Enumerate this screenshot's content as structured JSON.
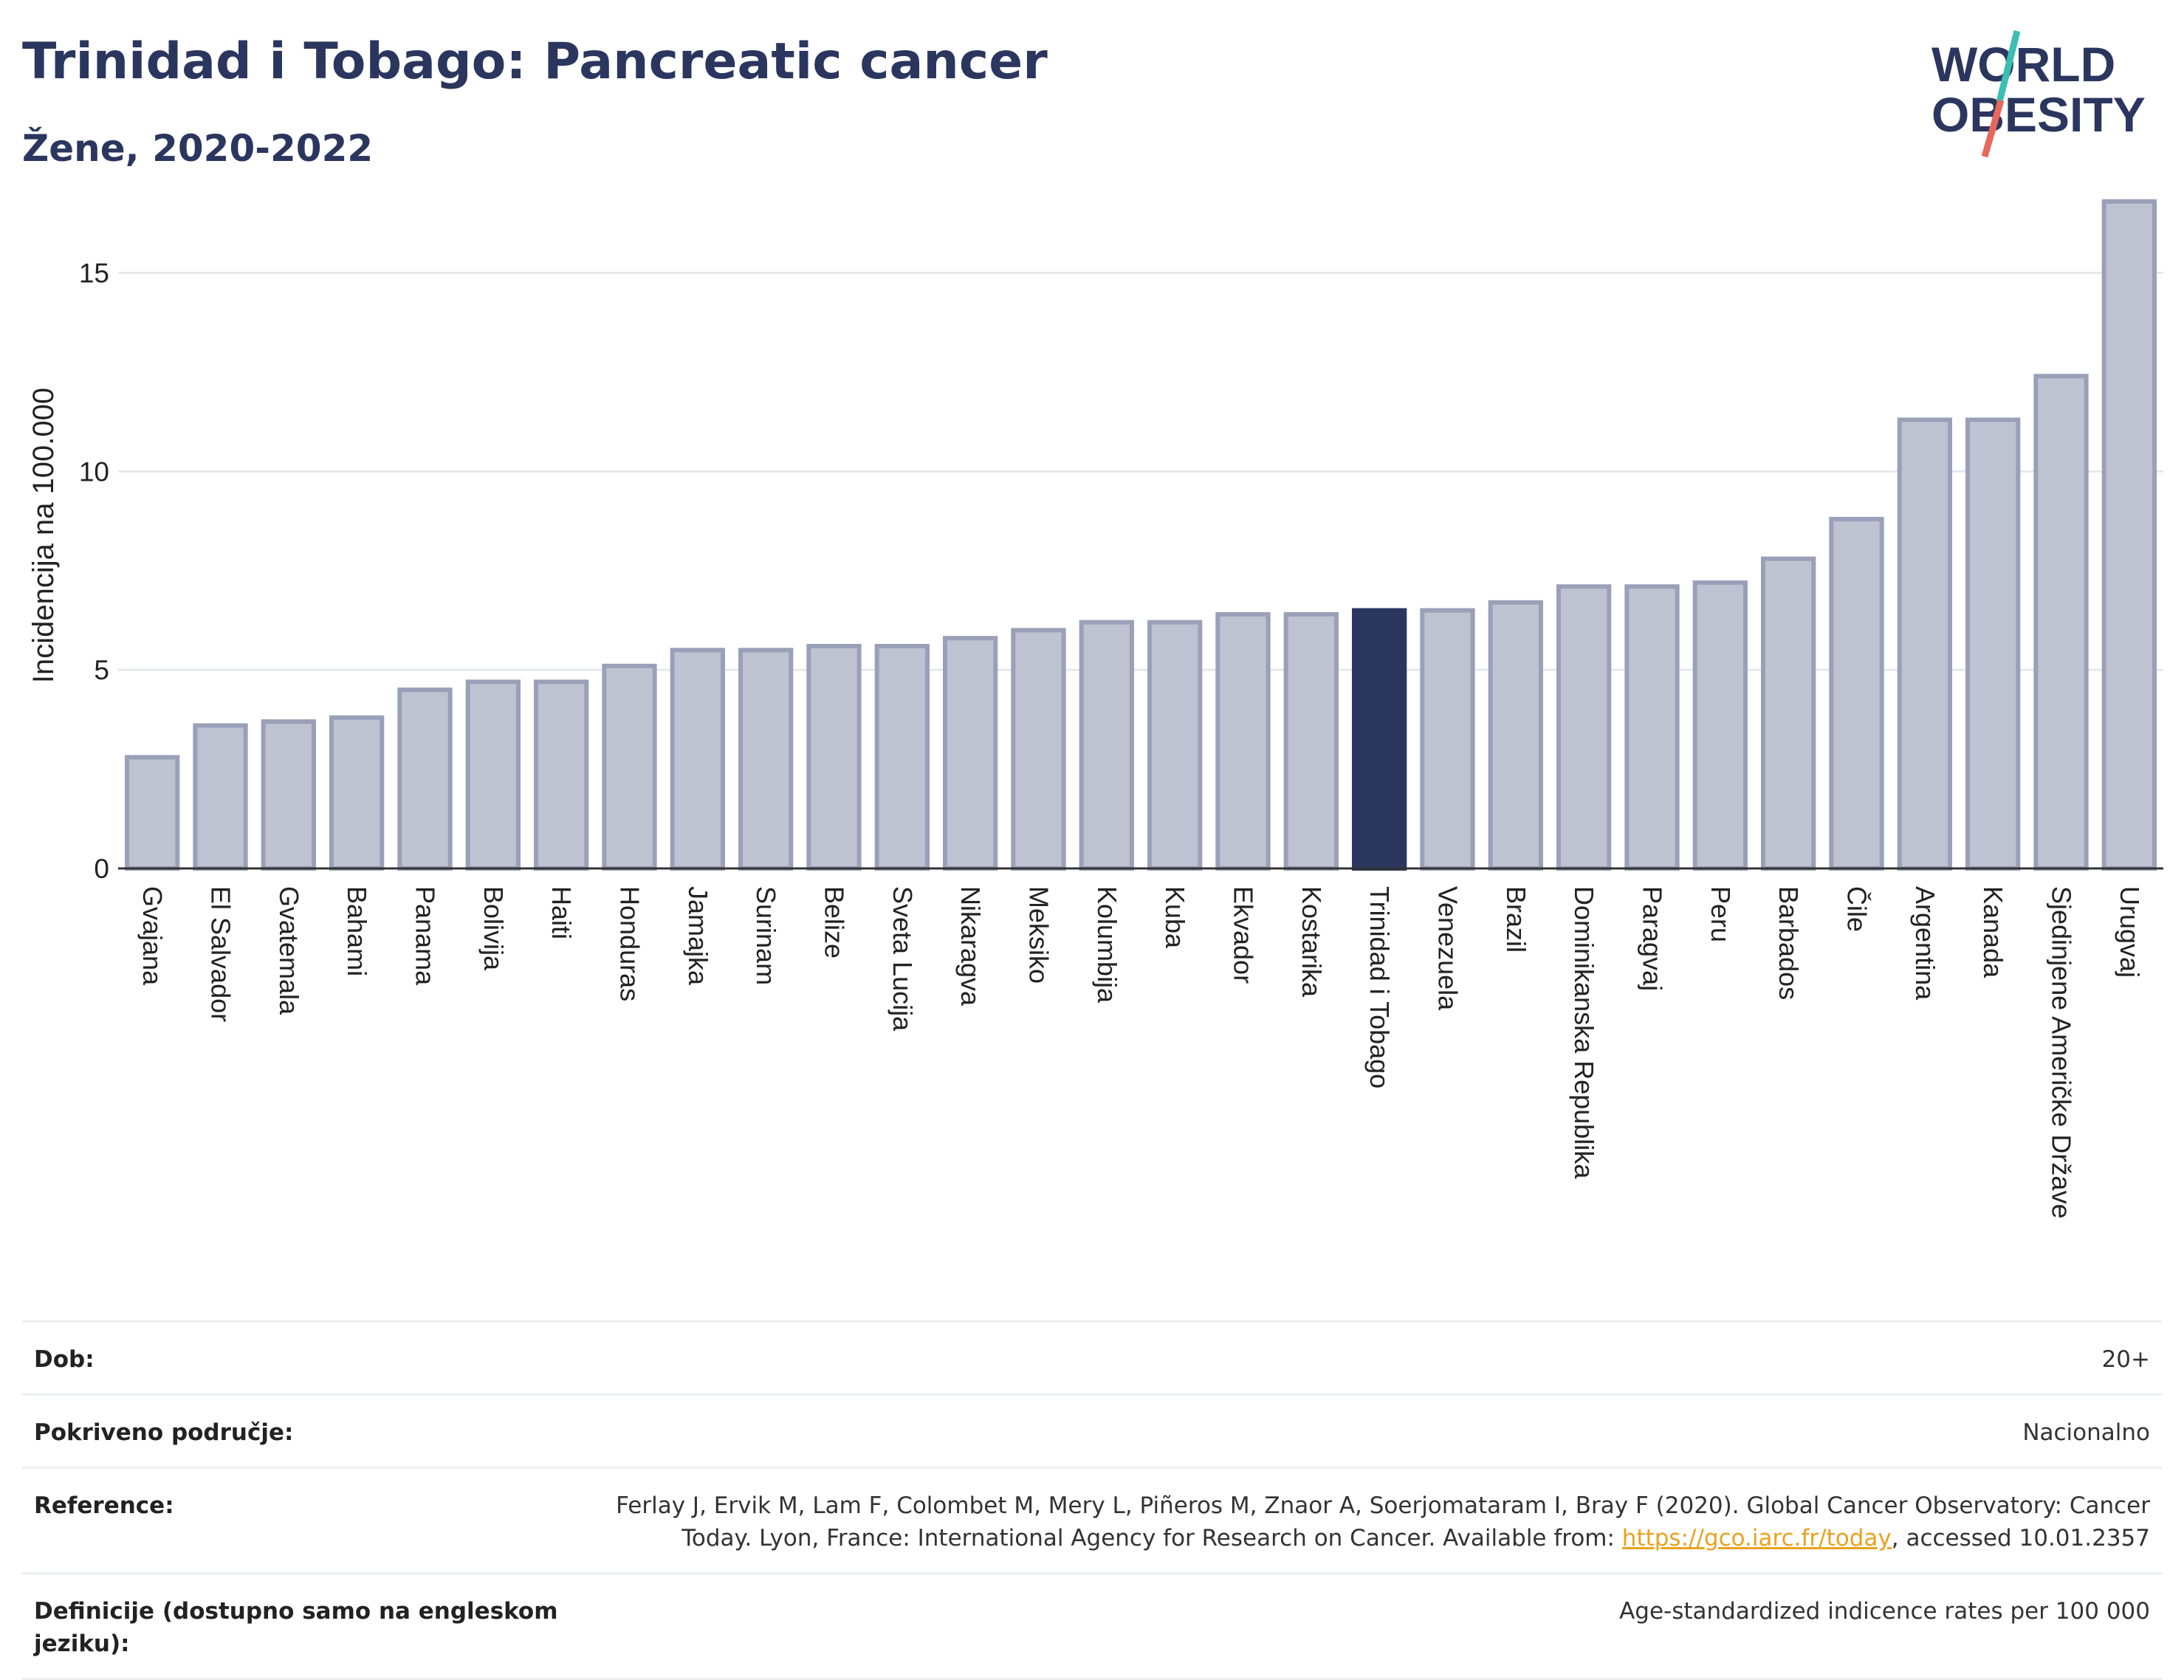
{
  "header": {
    "title": "Trinidad i Tobago: Pancreatic cancer",
    "subtitle": "Žene, 2020-2022"
  },
  "logo": {
    "line1": "WORLD",
    "line2": "OBESITY"
  },
  "colors": {
    "bar": "#bfc3d1",
    "bar_stroke": "#9aa0b8",
    "highlight": "#2b365f",
    "text": "#2b365f",
    "logo_teal": "#3bbfb3",
    "logo_red": "#e8675b"
  },
  "chart_data": {
    "type": "bar",
    "ylabel": "Incidencija na 100.000",
    "ylim": [
      0,
      17
    ],
    "yticks": [
      0,
      5,
      10,
      15
    ],
    "grid": true,
    "highlight": "Trinidad i Tobago",
    "categories": [
      "Gvajana",
      "El Salvador",
      "Gvatemala",
      "Bahami",
      "Panama",
      "Bolivija",
      "Haiti",
      "Honduras",
      "Jamajka",
      "Surinam",
      "Belize",
      "Sveta Lucija",
      "Nikaragva",
      "Meksiko",
      "Kolumbija",
      "Kuba",
      "Ekvador",
      "Kostarika",
      "Trinidad i Tobago",
      "Venezuela",
      "Brazil",
      "Dominikanska Republika",
      "Paragvaj",
      "Peru",
      "Barbados",
      "Čile",
      "Argentina",
      "Kanada",
      "Sjedinjene Američke Države",
      "Urugvaj"
    ],
    "values": [
      2.8,
      3.6,
      3.7,
      3.8,
      4.5,
      4.7,
      4.7,
      5.1,
      5.5,
      5.5,
      5.6,
      5.6,
      5.8,
      6.0,
      6.2,
      6.2,
      6.4,
      6.4,
      6.5,
      6.5,
      6.7,
      7.1,
      7.1,
      7.2,
      7.8,
      8.8,
      11.3,
      11.3,
      12.4,
      16.8
    ]
  },
  "meta": {
    "rows": [
      {
        "label": "Dob:",
        "value": "20+"
      },
      {
        "label": "Pokriveno područje:",
        "value": "Nacionalno"
      },
      {
        "label": "Reference:",
        "value_pre": "Ferlay J, Ervik M, Lam F, Colombet M, Mery L, Piñeros M, Znaor A, Soerjomataram I, Bray F (2020). Global Cancer Observatory: Cancer Today. Lyon, France: International Agency for Research on Cancer. Available from: ",
        "link": "https://gco.iarc.fr/today",
        "value_post": ", accessed 10.01.2357"
      },
      {
        "label": "Definicije (dostupno samo na engleskom jeziku):",
        "value": "Age-standardized indicence rates per 100 000"
      }
    ]
  }
}
